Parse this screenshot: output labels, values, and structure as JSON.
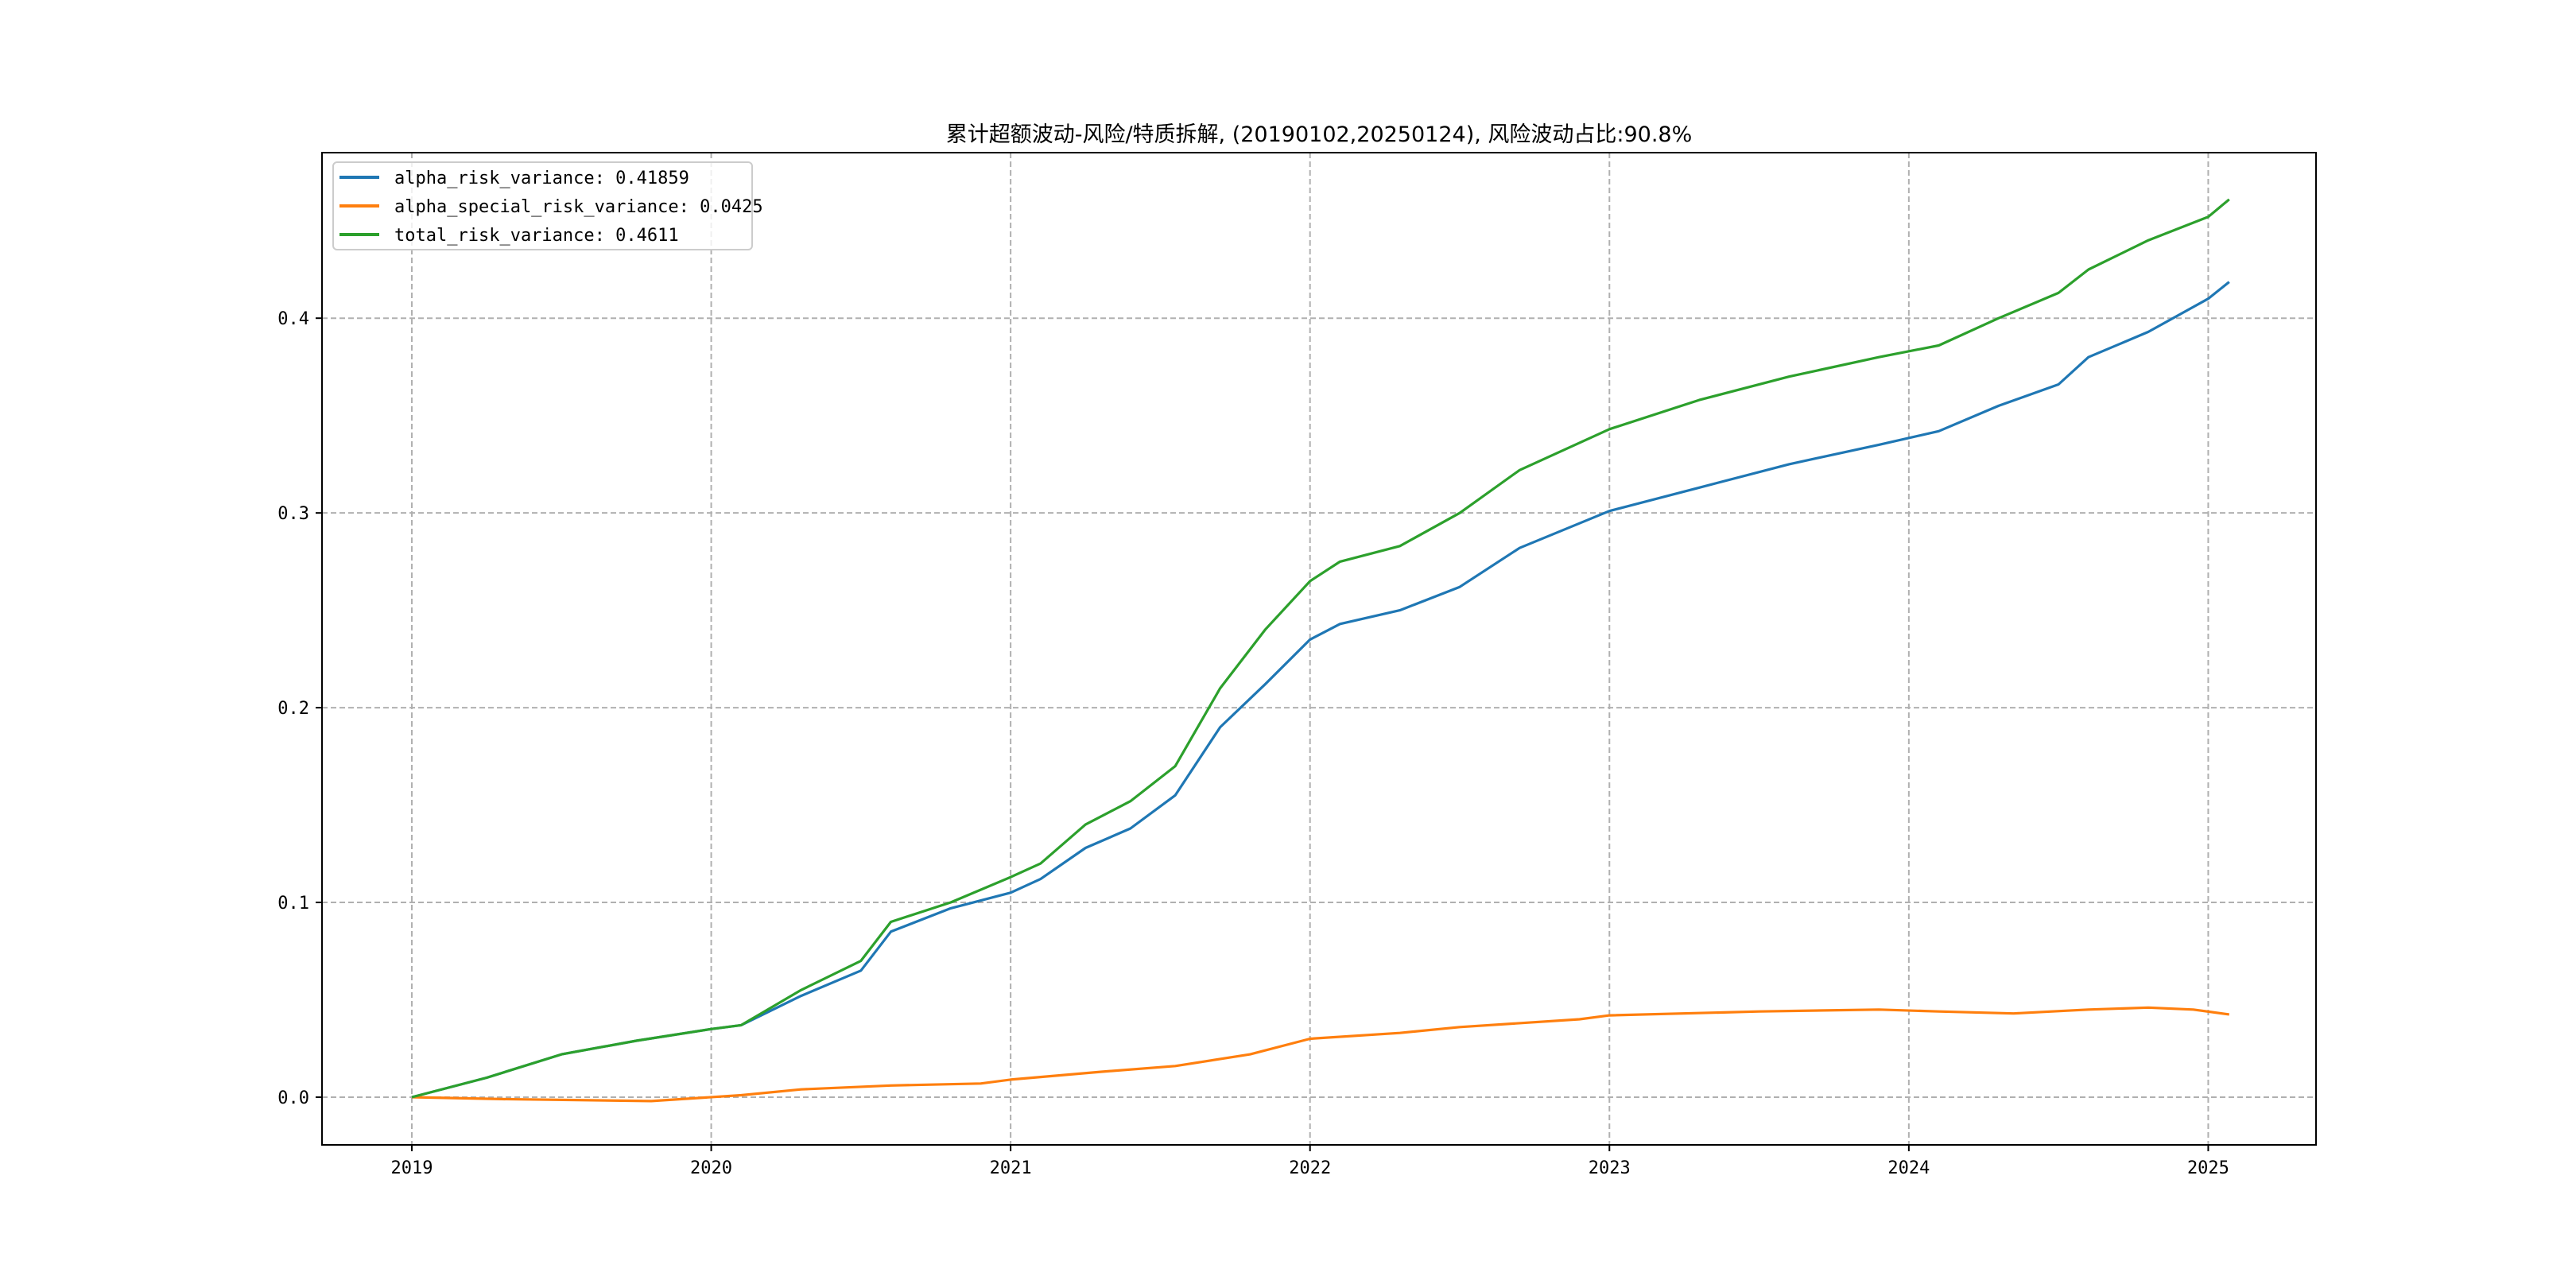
{
  "chart_data": {
    "type": "line",
    "title": "累计超额波动-风险/特质拆解, (20190102,20250124), 风险波动占比:90.8%",
    "xlabel": "",
    "ylabel": "",
    "xlim": [
      2018.7,
      2025.36
    ],
    "ylim": [
      -0.0245,
      0.485
    ],
    "xticks": [
      2019,
      2020,
      2021,
      2022,
      2023,
      2024,
      2025
    ],
    "xtick_labels": [
      "2019",
      "2020",
      "2021",
      "2022",
      "2023",
      "2024",
      "2025"
    ],
    "yticks": [
      0.0,
      0.1,
      0.2,
      0.3,
      0.4
    ],
    "ytick_labels": [
      "0.0",
      "0.1",
      "0.2",
      "0.3",
      "0.4"
    ],
    "grid": true,
    "legend_position": "top-left",
    "series": [
      {
        "name": "alpha_risk_variance: 0.41859",
        "color": "#1f77b4",
        "x": [
          2019.0,
          2019.25,
          2019.5,
          2019.75,
          2020.0,
          2020.1,
          2020.3,
          2020.5,
          2020.6,
          2020.8,
          2021.0,
          2021.1,
          2021.25,
          2021.4,
          2021.55,
          2021.7,
          2021.85,
          2022.0,
          2022.1,
          2022.3,
          2022.5,
          2022.7,
          2023.0,
          2023.3,
          2023.6,
          2023.9,
          2024.1,
          2024.3,
          2024.5,
          2024.6,
          2024.8,
          2025.0,
          2025.07
        ],
        "y": [
          0,
          0.01,
          0.022,
          0.029,
          0.035,
          0.037,
          0.052,
          0.065,
          0.085,
          0.097,
          0.105,
          0.112,
          0.128,
          0.138,
          0.155,
          0.19,
          0.212,
          0.235,
          0.243,
          0.25,
          0.262,
          0.282,
          0.301,
          0.313,
          0.325,
          0.335,
          0.342,
          0.355,
          0.366,
          0.38,
          0.393,
          0.41,
          0.4186
        ]
      },
      {
        "name": "alpha_special_risk_variance: 0.0425",
        "color": "#ff7f0e",
        "x": [
          2019.0,
          2019.3,
          2019.8,
          2020.1,
          2020.3,
          2020.6,
          2020.9,
          2021.0,
          2021.3,
          2021.55,
          2021.8,
          2022.0,
          2022.3,
          2022.5,
          2022.9,
          2023.0,
          2023.5,
          2023.9,
          2024.1,
          2024.35,
          2024.6,
          2024.8,
          2024.95,
          2025.07
        ],
        "y": [
          0,
          -0.001,
          -0.002,
          0.001,
          0.004,
          0.006,
          0.007,
          0.009,
          0.013,
          0.016,
          0.022,
          0.03,
          0.033,
          0.036,
          0.04,
          0.042,
          0.044,
          0.045,
          0.044,
          0.043,
          0.045,
          0.046,
          0.045,
          0.0425
        ]
      },
      {
        "name": "total_risk_variance: 0.4611",
        "color": "#2ca02c",
        "x": [
          2019.0,
          2019.25,
          2019.5,
          2019.75,
          2020.0,
          2020.1,
          2020.3,
          2020.5,
          2020.6,
          2020.8,
          2021.0,
          2021.1,
          2021.25,
          2021.4,
          2021.55,
          2021.7,
          2021.85,
          2022.0,
          2022.1,
          2022.3,
          2022.5,
          2022.7,
          2023.0,
          2023.3,
          2023.6,
          2023.9,
          2024.1,
          2024.3,
          2024.5,
          2024.6,
          2024.8,
          2025.0,
          2025.07
        ],
        "y": [
          0,
          0.01,
          0.022,
          0.029,
          0.035,
          0.037,
          0.055,
          0.07,
          0.09,
          0.1,
          0.113,
          0.12,
          0.14,
          0.152,
          0.17,
          0.21,
          0.24,
          0.265,
          0.275,
          0.283,
          0.3,
          0.322,
          0.343,
          0.358,
          0.37,
          0.38,
          0.386,
          0.4,
          0.413,
          0.425,
          0.44,
          0.452,
          0.461
        ]
      }
    ]
  }
}
